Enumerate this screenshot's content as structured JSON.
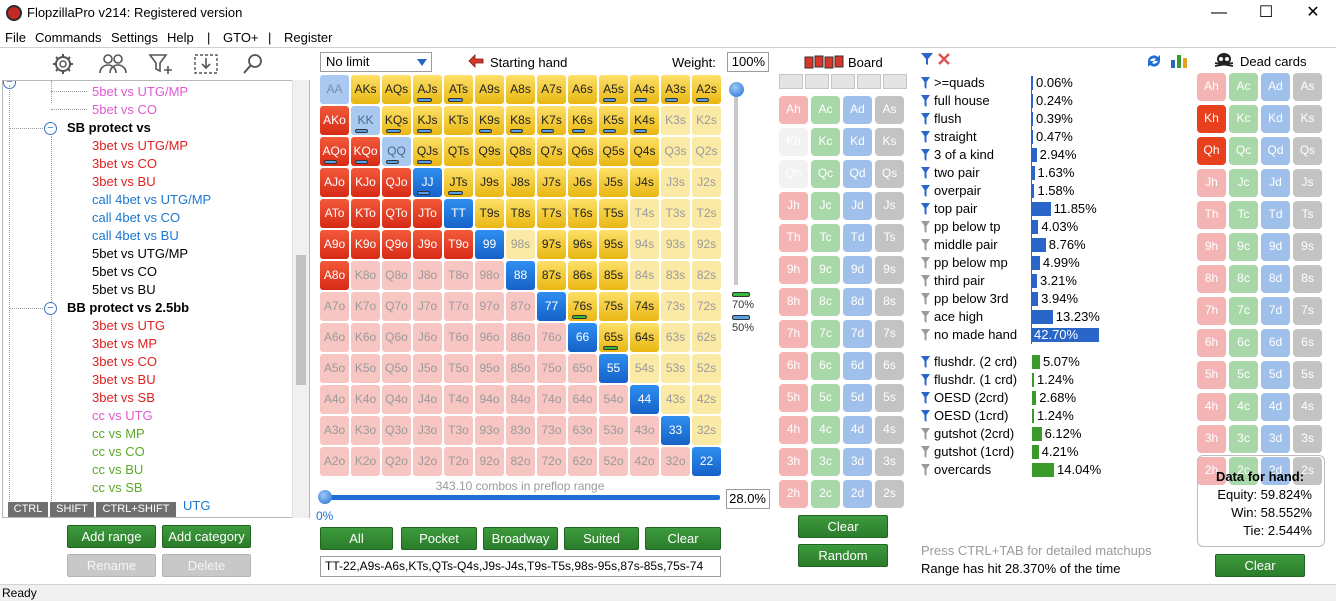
{
  "window": {
    "title": "FlopzillaPro v214: Registered version",
    "minimize": "—",
    "maximize": "☐",
    "close": "✕"
  },
  "menu": [
    "File",
    "Commands",
    "Settings",
    "Help",
    "|",
    "GTO+",
    "|",
    "Register"
  ],
  "tree": {
    "nodes": [
      {
        "label": "5bet vs UTG/MP",
        "color": "#e05ad0",
        "level": 2
      },
      {
        "label": "5bet vs CO",
        "color": "#e05ad0",
        "level": 2
      },
      {
        "label": "SB protect vs",
        "color": "#000000",
        "level": 1,
        "bold": true
      },
      {
        "label": "3bet vs UTG/MP",
        "color": "#e02020",
        "level": 2
      },
      {
        "label": "3bet vs CO",
        "color": "#e02020",
        "level": 2
      },
      {
        "label": "3bet vs BU",
        "color": "#e02020",
        "level": 2
      },
      {
        "label": "call 4bet vs UTG/MP",
        "color": "#1a78d0",
        "level": 2
      },
      {
        "label": "call 4bet vs CO",
        "color": "#1a78d0",
        "level": 2
      },
      {
        "label": "call 4bet vs BU",
        "color": "#1a78d0",
        "level": 2
      },
      {
        "label": "5bet vs UTG/MP",
        "color": "#000000",
        "level": 2
      },
      {
        "label": "5bet vs CO",
        "color": "#000000",
        "level": 2
      },
      {
        "label": "5bet vs BU",
        "color": "#000000",
        "level": 2
      },
      {
        "label": "BB protect vs 2.5bb",
        "color": "#000000",
        "level": 1,
        "bold": true
      },
      {
        "label": "3bet vs UTG",
        "color": "#e02020",
        "level": 2
      },
      {
        "label": "3bet vs MP",
        "color": "#e02020",
        "level": 2
      },
      {
        "label": "3bet vs CO",
        "color": "#e02020",
        "level": 2
      },
      {
        "label": "3bet vs BU",
        "color": "#e02020",
        "level": 2
      },
      {
        "label": "3bet vs SB",
        "color": "#e02020",
        "level": 2
      },
      {
        "label": "cc vs UTG",
        "color": "#e05ad0",
        "level": 2
      },
      {
        "label": "cc vs MP",
        "color": "#5aaa2a",
        "level": 2
      },
      {
        "label": "cc vs CO",
        "color": "#5aaa2a",
        "level": 2
      },
      {
        "label": "cc vs BU",
        "color": "#5aaa2a",
        "level": 2
      },
      {
        "label": "cc vs SB",
        "color": "#5aaa2a",
        "level": 2
      },
      {
        "label": "UTG",
        "color": "#1a78d0",
        "level": 2
      }
    ],
    "keys": [
      "CTRL",
      "SHIFT",
      "CTRL+SHIFT"
    ]
  },
  "buttons": {
    "add_range": "Add range",
    "add_category": "Add category",
    "rename": "Rename",
    "delete": "Delete",
    "all": "All",
    "pocket": "Pocket",
    "broadway": "Broadway",
    "suited": "Suited",
    "clear": "Clear",
    "board_clear": "Clear",
    "random": "Random",
    "dead_clear": "Clear"
  },
  "range": {
    "limit": "No limit",
    "starting_hand_label": "Starting hand",
    "weight_label": "Weight:",
    "weight": "100%",
    "combos_text": "343.10 combos in preflop range",
    "pct_left": "0%",
    "pct_right": "28.0%",
    "legend_top": "70%",
    "legend_bottom": "50%",
    "range_string": "TT-22,A9s-A6s,KTs,QTs-Q4s,J9s-J4s,T9s-T5s,98s-95s,87s-85s,75s-74",
    "rows": [
      [
        "AA",
        "AKs",
        "AQs",
        "AJs",
        "ATs",
        "A9s",
        "A8s",
        "A7s",
        "A6s",
        "A5s",
        "A4s",
        "A3s",
        "A2s"
      ],
      [
        "AKo",
        "KK",
        "KQs",
        "KJs",
        "KTs",
        "K9s",
        "K8s",
        "K7s",
        "K6s",
        "K5s",
        "K4s",
        "K3s",
        "K2s"
      ],
      [
        "AQo",
        "KQo",
        "QQ",
        "QJs",
        "QTs",
        "Q9s",
        "Q8s",
        "Q7s",
        "Q6s",
        "Q5s",
        "Q4s",
        "Q3s",
        "Q2s"
      ],
      [
        "AJo",
        "KJo",
        "QJo",
        "JJ",
        "JTs",
        "J9s",
        "J8s",
        "J7s",
        "J6s",
        "J5s",
        "J4s",
        "J3s",
        "J2s"
      ],
      [
        "ATo",
        "KTo",
        "QTo",
        "JTo",
        "TT",
        "T9s",
        "T8s",
        "T7s",
        "T6s",
        "T5s",
        "T4s",
        "T3s",
        "T2s"
      ],
      [
        "A9o",
        "K9o",
        "Q9o",
        "J9o",
        "T9o",
        "99",
        "98s",
        "97s",
        "96s",
        "95s",
        "94s",
        "93s",
        "92s"
      ],
      [
        "A8o",
        "K8o",
        "Q8o",
        "J8o",
        "T8o",
        "98o",
        "88",
        "87s",
        "86s",
        "85s",
        "84s",
        "83s",
        "82s"
      ],
      [
        "A7o",
        "K7o",
        "Q7o",
        "J7o",
        "T7o",
        "97o",
        "87o",
        "77",
        "76s",
        "75s",
        "74s",
        "73s",
        "72s"
      ],
      [
        "A6o",
        "K6o",
        "Q6o",
        "J6o",
        "T6o",
        "96o",
        "86o",
        "76o",
        "66",
        "65s",
        "64s",
        "63s",
        "62s"
      ],
      [
        "A5o",
        "K5o",
        "Q5o",
        "J5o",
        "T5o",
        "95o",
        "85o",
        "75o",
        "65o",
        "55",
        "54s",
        "53s",
        "52s"
      ],
      [
        "A4o",
        "K4o",
        "Q4o",
        "J4o",
        "T4o",
        "94o",
        "84o",
        "74o",
        "64o",
        "54o",
        "44",
        "43s",
        "42s"
      ],
      [
        "A3o",
        "K3o",
        "Q3o",
        "J3o",
        "T3o",
        "93o",
        "83o",
        "73o",
        "63o",
        "53o",
        "43o",
        "33",
        "32s"
      ],
      [
        "A2o",
        "K2o",
        "Q2o",
        "J2o",
        "T2o",
        "92o",
        "82o",
        "72o",
        "62o",
        "52o",
        "42o",
        "32o",
        "22"
      ]
    ],
    "states": [
      "PYYYYYYYYYYYY",
      "RpYYYYYYYYYyy",
      "RRpYYYYYYYYyy",
      "RRRBYYYYYYYyy",
      "RRRRBYYYYYyyy",
      "RRRRRByYYYyyy",
      "RrrrrrBYYYyyy",
      "rrrrrrrBYYYyy",
      "rrrrrrrrBYYyy",
      "rrrrrrrrrByyy",
      "rrrrrrrrrrByy",
      "rrrrrrrrrrrBy",
      "rrrrrrrrrrrrB"
    ]
  },
  "board": {
    "label": "Board",
    "ranks": [
      "A",
      "K",
      "Q",
      "J",
      "T",
      "9",
      "8",
      "7",
      "6",
      "5",
      "4",
      "3",
      "2"
    ],
    "suits": [
      "h",
      "c",
      "d",
      "s"
    ],
    "faded": [
      "Kh",
      "Qh"
    ]
  },
  "stats": [
    {
      "label": ">=quads",
      "value": "0.06%",
      "pct": 0.06,
      "icon": "blue"
    },
    {
      "label": "full house",
      "value": "0.24%",
      "pct": 0.24,
      "icon": "blue"
    },
    {
      "label": "flush",
      "value": "0.39%",
      "pct": 0.39,
      "icon": "blue"
    },
    {
      "label": "straight",
      "value": "0.47%",
      "pct": 0.47,
      "icon": "blue"
    },
    {
      "label": "3 of a kind",
      "value": "2.94%",
      "pct": 2.94,
      "icon": "blue"
    },
    {
      "label": "two pair",
      "value": "1.63%",
      "pct": 1.63,
      "icon": "blue"
    },
    {
      "label": "overpair",
      "value": "1.58%",
      "pct": 1.58,
      "icon": "blue"
    },
    {
      "label": "top pair",
      "value": "11.85%",
      "pct": 11.85,
      "icon": "blue"
    },
    {
      "label": "pp below tp",
      "value": "4.03%",
      "pct": 4.03,
      "icon": "gray"
    },
    {
      "label": "middle pair",
      "value": "8.76%",
      "pct": 8.76,
      "icon": "gray"
    },
    {
      "label": "pp below mp",
      "value": "4.99%",
      "pct": 4.99,
      "icon": "gray"
    },
    {
      "label": "third pair",
      "value": "3.21%",
      "pct": 3.21,
      "icon": "gray"
    },
    {
      "label": "pp below 3rd",
      "value": "3.94%",
      "pct": 3.94,
      "icon": "gray"
    },
    {
      "label": "ace high",
      "value": "13.23%",
      "pct": 13.23,
      "icon": "gray"
    },
    {
      "label": "no made hand",
      "value": "42.70%",
      "pct": 42.7,
      "icon": "gray",
      "highlight": true
    }
  ],
  "draws": [
    {
      "label": "flushdr. (2 crd)",
      "value": "5.07%",
      "pct": 5.07,
      "icon": "blue"
    },
    {
      "label": "flushdr. (1 crd)",
      "value": "1.24%",
      "pct": 1.24,
      "icon": "blue"
    },
    {
      "label": "OESD (2crd)",
      "value": "2.68%",
      "pct": 2.68,
      "icon": "blue"
    },
    {
      "label": "OESD (1crd)",
      "value": "1.24%",
      "pct": 1.24,
      "icon": "blue"
    },
    {
      "label": "gutshot (2crd)",
      "value": "6.12%",
      "pct": 6.12,
      "icon": "gray"
    },
    {
      "label": "gutshot (1crd)",
      "value": "4.21%",
      "pct": 4.21,
      "icon": "gray"
    },
    {
      "label": "overcards",
      "value": "14.04%",
      "pct": 14.04,
      "icon": "gray"
    }
  ],
  "dead": {
    "label": "Dead cards",
    "selected": [
      "Kh",
      "Qh"
    ],
    "data_title": "Data for hand:",
    "equity": "Equity: 59.824%",
    "win": "Win: 58.552%",
    "tie": "Tie: 2.544%"
  },
  "footer": {
    "hint": "Press CTRL+TAB for detailed matchups",
    "hit": "Range has hit 28.370% of the time"
  },
  "status": "Ready",
  "colors": {
    "green_button": "#2e8b2e",
    "selected_blue": "#1d6fd6",
    "stat_blue": "#2a66c8",
    "draw_green": "#3a9a2a"
  }
}
